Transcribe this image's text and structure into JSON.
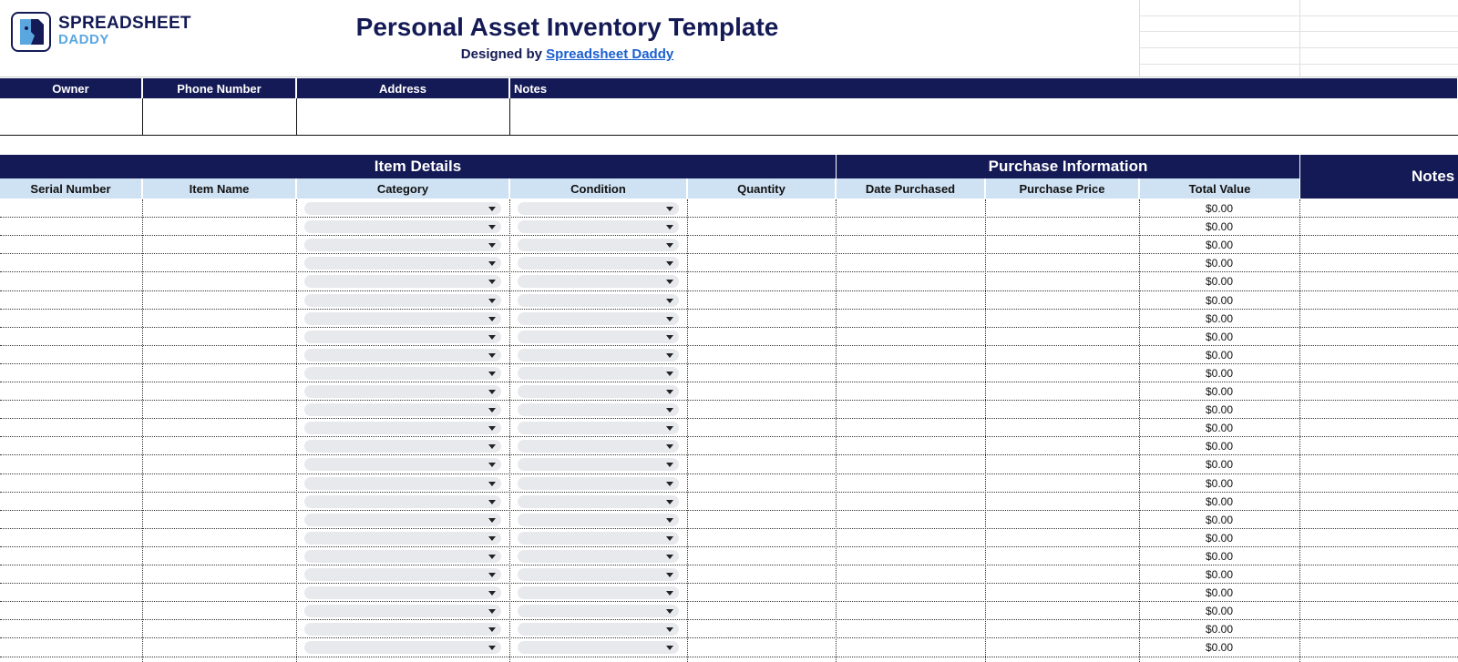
{
  "header": {
    "logo_top": "SPREADSHEET",
    "logo_bottom": "DADDY",
    "title": "Personal Asset Inventory Template",
    "subtitle_prefix": "Designed by",
    "subtitle_link": "Spreadsheet Daddy"
  },
  "owner_table": {
    "columns": [
      "Owner",
      "Phone Number",
      "Address",
      "Notes"
    ]
  },
  "inventory": {
    "groups": [
      "Item Details",
      "Purchase Information",
      "Notes"
    ],
    "columns": [
      "Serial Number",
      "Item Name",
      "Category",
      "Condition",
      "Quantity",
      "Date Purchased",
      "Purchase Price",
      "Total Value"
    ],
    "rows": [
      {
        "total_value": "$0.00"
      },
      {
        "total_value": "$0.00"
      },
      {
        "total_value": "$0.00"
      },
      {
        "total_value": "$0.00"
      },
      {
        "total_value": "$0.00"
      },
      {
        "total_value": "$0.00"
      },
      {
        "total_value": "$0.00"
      },
      {
        "total_value": "$0.00"
      },
      {
        "total_value": "$0.00"
      },
      {
        "total_value": "$0.00"
      },
      {
        "total_value": "$0.00"
      },
      {
        "total_value": "$0.00"
      },
      {
        "total_value": "$0.00"
      },
      {
        "total_value": "$0.00"
      },
      {
        "total_value": "$0.00"
      },
      {
        "total_value": "$0.00"
      },
      {
        "total_value": "$0.00"
      },
      {
        "total_value": "$0.00"
      },
      {
        "total_value": "$0.00"
      },
      {
        "total_value": "$0.00"
      },
      {
        "total_value": "$0.00"
      },
      {
        "total_value": "$0.00"
      },
      {
        "total_value": "$0.00"
      },
      {
        "total_value": "$0.00"
      },
      {
        "total_value": "$0.00"
      }
    ]
  }
}
